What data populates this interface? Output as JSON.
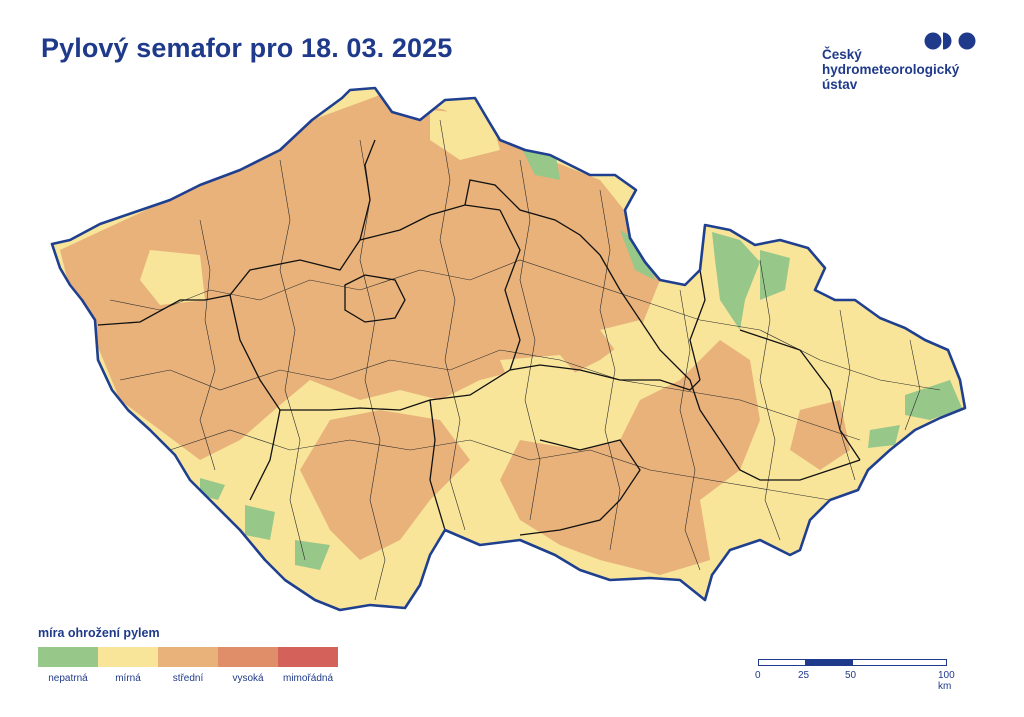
{
  "title": "Pylový semafor pro 18. 03. 2025",
  "logo": {
    "lines": [
      "Český",
      "hydrometeorologický",
      "ústav"
    ]
  },
  "legend": {
    "title": "míra ohrožení pylem",
    "items": [
      {
        "label": "nepatrná",
        "color": "#97c88a"
      },
      {
        "label": "mírná",
        "color": "#f8e59a"
      },
      {
        "label": "střední",
        "color": "#e8b27a"
      },
      {
        "label": "vysoká",
        "color": "#e08d69"
      },
      {
        "label": "mimořádná",
        "color": "#d5625a"
      }
    ]
  },
  "scale": {
    "labels": [
      "0",
      "25",
      "50",
      "100 km"
    ]
  },
  "colors": {
    "accent": "#1f3a8a",
    "border": "#1f3f8f",
    "district": "#2b2b2b"
  }
}
